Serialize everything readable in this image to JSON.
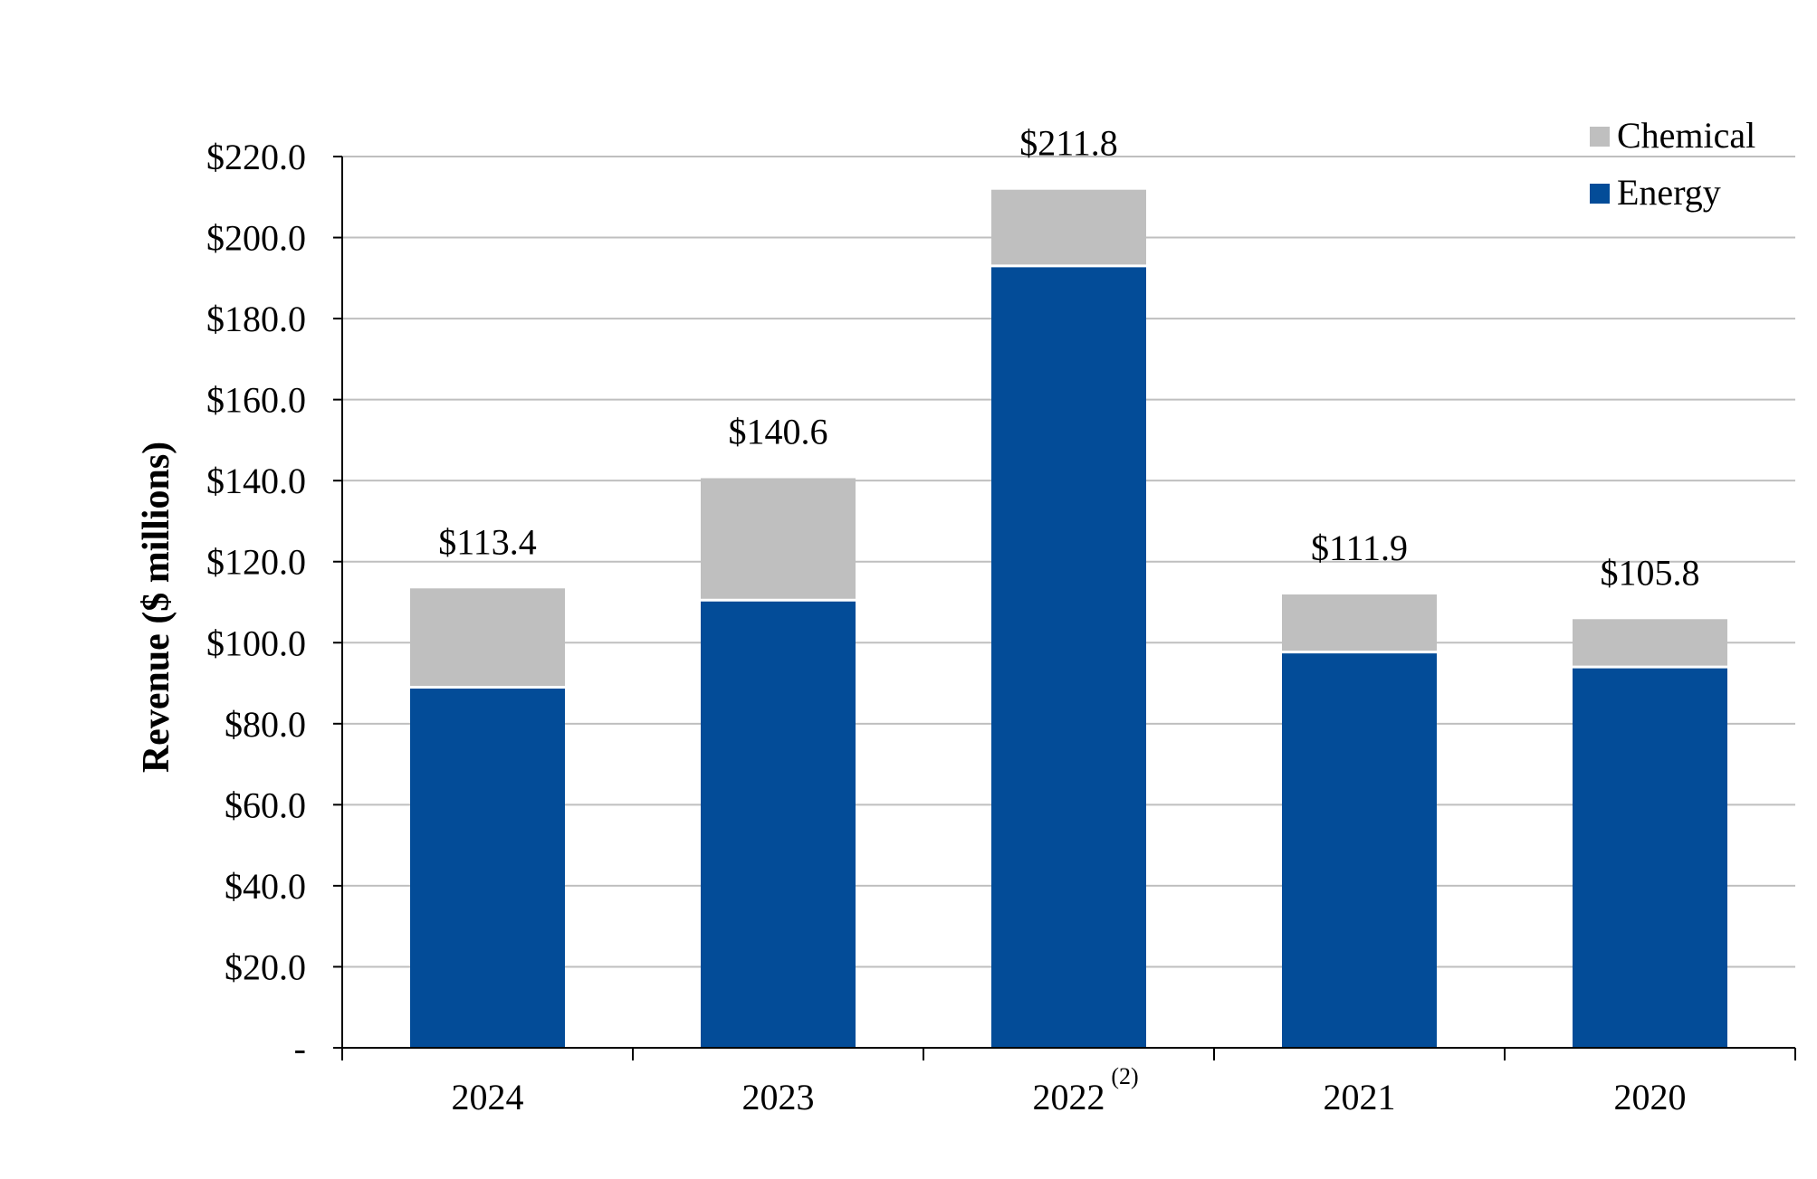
{
  "chart_data": {
    "type": "bar",
    "stacked": true,
    "title": "",
    "xlabel": "",
    "ylabel": "Revenue ($ millions)",
    "ylim": [
      0,
      220
    ],
    "ytick_step": 20,
    "ytick_labels": [
      "-",
      "$20.0",
      "$40.0",
      "$60.0",
      "$80.0",
      "$100.0",
      "$120.0",
      "$140.0",
      "$160.0",
      "$180.0",
      "$200.0",
      "$220.0"
    ],
    "categories": [
      "2024",
      "2023",
      "2022",
      "2021",
      "2020"
    ],
    "category_superscripts": [
      "",
      "",
      "(2)",
      "",
      ""
    ],
    "series": [
      {
        "name": "Energy",
        "color": "#034c98",
        "values": [
          89.0,
          110.5,
          193.0,
          97.7,
          94.0
        ]
      },
      {
        "name": "Chemical",
        "color": "#bfbfbf",
        "values": [
          24.4,
          30.1,
          18.8,
          14.2,
          11.8
        ]
      }
    ],
    "totals": [
      113.4,
      140.6,
      211.8,
      111.9,
      105.8
    ],
    "total_labels": [
      "$113.4",
      "$140.6",
      "$211.8",
      "$111.9",
      "$105.8"
    ],
    "legend": {
      "position": "top-right",
      "order": [
        "Chemical",
        "Energy"
      ]
    },
    "grid": true,
    "gridline_color": "#bfbfbf"
  }
}
